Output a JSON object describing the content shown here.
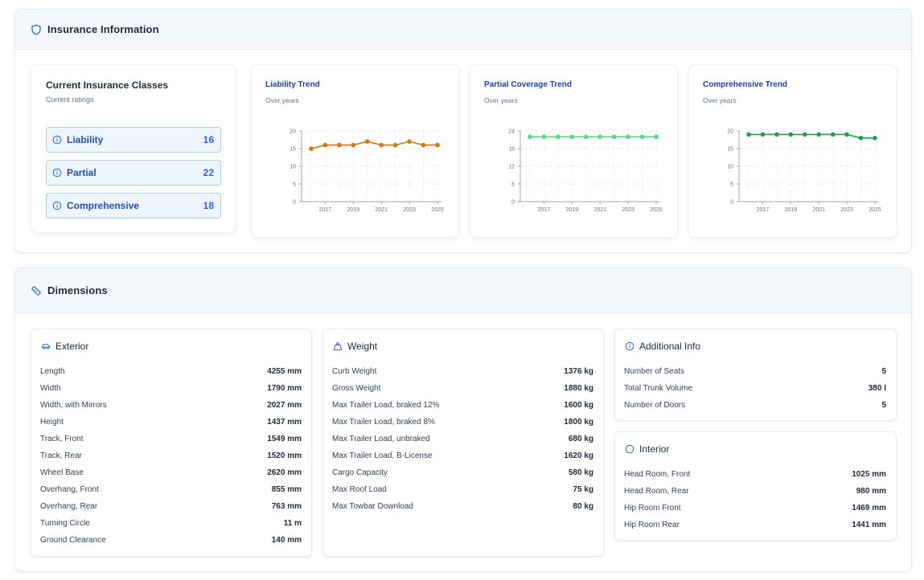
{
  "insurance": {
    "title": "Insurance Information",
    "classes_card": {
      "title": "Current Insurance Classes",
      "subtitle": "Current ratings",
      "items": [
        {
          "label": "Liability",
          "value": "16"
        },
        {
          "label": "Partial",
          "value": "22"
        },
        {
          "label": "Comprehensive",
          "value": "18"
        }
      ]
    },
    "trends": [
      {
        "title": "Liability Trend",
        "subtitle": "Over years"
      },
      {
        "title": "Partial Coverage Trend",
        "subtitle": "Over years"
      },
      {
        "title": "Comprehensive Trend",
        "subtitle": "Over years"
      }
    ]
  },
  "chart_data": [
    {
      "type": "line",
      "title": "Liability Trend",
      "x": [
        2016,
        2017,
        2018,
        2019,
        2020,
        2021,
        2022,
        2023,
        2024,
        2025
      ],
      "series": [
        {
          "values": [
            15,
            16,
            16,
            16,
            17,
            16,
            16,
            17,
            16,
            16
          ]
        }
      ],
      "xticks": [
        "2017",
        "2019",
        "2021",
        "2023",
        "2025"
      ],
      "yticks": [
        "0",
        "5",
        "10",
        "15",
        "20"
      ],
      "ylim": [
        0,
        20
      ],
      "color": "#d97706",
      "grid": true
    },
    {
      "type": "line",
      "title": "Partial Coverage Trend",
      "x": [
        2016,
        2017,
        2018,
        2019,
        2020,
        2021,
        2022,
        2023,
        2024,
        2025
      ],
      "series": [
        {
          "values": [
            22,
            22,
            22,
            22,
            22,
            22,
            22,
            22,
            22,
            22
          ]
        }
      ],
      "xticks": [
        "2017",
        "2019",
        "2021",
        "2023",
        "2025"
      ],
      "yticks": [
        "0",
        "6",
        "12",
        "18",
        "24"
      ],
      "ylim": [
        0,
        24
      ],
      "color": "#4ade80",
      "grid": true
    },
    {
      "type": "line",
      "title": "Comprehensive Trend",
      "x": [
        2016,
        2017,
        2018,
        2019,
        2020,
        2021,
        2022,
        2023,
        2024,
        2025
      ],
      "series": [
        {
          "values": [
            19,
            19,
            19,
            19,
            19,
            19,
            19,
            19,
            18,
            18
          ]
        }
      ],
      "xticks": [
        "2017",
        "2019",
        "2021",
        "2023",
        "2025"
      ],
      "yticks": [
        "0",
        "5",
        "10",
        "15",
        "20"
      ],
      "ylim": [
        0,
        20
      ],
      "color": "#16a34a",
      "grid": true
    }
  ],
  "dimensions": {
    "title": "Dimensions",
    "exterior": {
      "title": "Exterior",
      "rows": [
        {
          "label": "Length",
          "value": "4255 mm"
        },
        {
          "label": "Width",
          "value": "1790 mm"
        },
        {
          "label": "Width, with Mirrors",
          "value": "2027 mm"
        },
        {
          "label": "Height",
          "value": "1437 mm"
        },
        {
          "label": "Track, Front",
          "value": "1549 mm"
        },
        {
          "label": "Track, Rear",
          "value": "1520 mm"
        },
        {
          "label": "Wheel Base",
          "value": "2620 mm"
        },
        {
          "label": "Overhang, Front",
          "value": "855 mm"
        },
        {
          "label": "Overhang, Rear",
          "value": "763 mm"
        },
        {
          "label": "Turning Circle",
          "value": "11 m"
        },
        {
          "label": "Ground Clearance",
          "value": "140 mm"
        }
      ]
    },
    "weight": {
      "title": "Weight",
      "rows": [
        {
          "label": "Curb Weight",
          "value": "1376 kg"
        },
        {
          "label": "Gross Weight",
          "value": "1880 kg"
        },
        {
          "label": "Max Trailer Load, braked 12%",
          "value": "1600 kg"
        },
        {
          "label": "Max Trailer Load, braked 8%",
          "value": "1800 kg"
        },
        {
          "label": "Max Trailer Load, unbraked",
          "value": "680 kg"
        },
        {
          "label": "Max Trailer Load, B-License",
          "value": "1620 kg"
        },
        {
          "label": "Cargo Capacity",
          "value": "580 kg"
        },
        {
          "label": "Max Roof Load",
          "value": "75 kg"
        },
        {
          "label": "Max Towbar Download",
          "value": "80 kg"
        }
      ]
    },
    "additional": {
      "title": "Additional Info",
      "rows": [
        {
          "label": "Number of Seats",
          "value": "5"
        },
        {
          "label": "Total Trunk Volume",
          "value": "380 l"
        },
        {
          "label": "Number of Doors",
          "value": "5"
        }
      ]
    },
    "interior": {
      "title": "Interior",
      "rows": [
        {
          "label": "Head Room, Front",
          "value": "1025 mm"
        },
        {
          "label": "Head Room, Rear",
          "value": "980 mm"
        },
        {
          "label": "Hip Room Front",
          "value": "1469 mm"
        },
        {
          "label": "Hip Room Rear",
          "value": "1441 mm"
        }
      ]
    }
  },
  "icons": {
    "insurance": "shield-icon",
    "dimensions": "ruler-icon",
    "class_item": "info-icon",
    "exterior": "car-icon",
    "weight": "weight-icon",
    "additional": "info-icon",
    "interior": "circle-icon"
  }
}
